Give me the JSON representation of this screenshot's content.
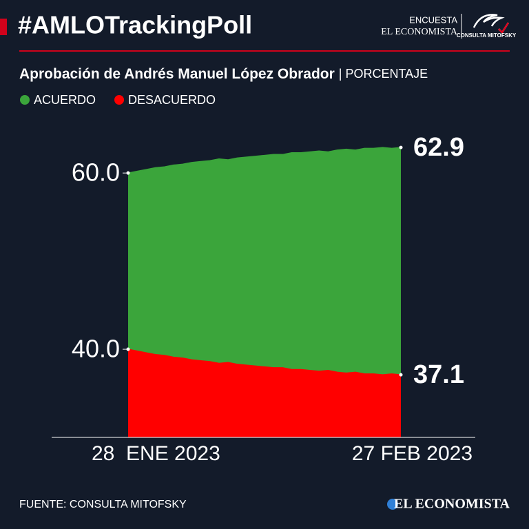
{
  "header": {
    "title": "#AMLOTrackingPoll",
    "logo_top": "ENCUESTA",
    "logo_brand": "EL ECONOMISTA",
    "logo_partner": "CONSULTA MITOFSKY"
  },
  "chart_data": {
    "type": "area",
    "subtitle": "Aprobación de Andrés Manuel López Obrador",
    "unit": "| PORCENTAJE",
    "categories": [
      "28  ENE 2023",
      null,
      null,
      null,
      null,
      null,
      null,
      null,
      null,
      null,
      null,
      null,
      null,
      null,
      null,
      null,
      null,
      null,
      null,
      null,
      null,
      null,
      null,
      null,
      null,
      null,
      null,
      null,
      null,
      null,
      "27 FEB 2023"
    ],
    "series": [
      {
        "name": "ACUERDO",
        "color": "#3ba53b",
        "values": [
          60.0,
          60.2,
          60.4,
          60.6,
          60.7,
          60.9,
          61.0,
          61.2,
          61.3,
          61.4,
          61.6,
          61.5,
          61.7,
          61.8,
          61.9,
          62.0,
          62.1,
          62.1,
          62.3,
          62.3,
          62.4,
          62.5,
          62.4,
          62.6,
          62.7,
          62.6,
          62.8,
          62.8,
          62.9,
          62.8,
          62.9
        ]
      },
      {
        "name": "DESACUERDO",
        "color": "#ff0000",
        "values": [
          40.0,
          39.8,
          39.6,
          39.4,
          39.3,
          39.1,
          39.0,
          38.8,
          38.7,
          38.6,
          38.4,
          38.5,
          38.3,
          38.2,
          38.1,
          38.0,
          37.9,
          37.9,
          37.7,
          37.7,
          37.6,
          37.5,
          37.6,
          37.4,
          37.3,
          37.4,
          37.2,
          37.2,
          37.1,
          37.2,
          37.1
        ]
      }
    ],
    "ylim": [
      30,
      64
    ],
    "yticks": [
      {
        "value": 40,
        "label": "40.0"
      },
      {
        "value": 60,
        "label": "60.0"
      }
    ],
    "grid": false
  },
  "footer": {
    "source": "FUENTE: CONSULTA MITOFSKY",
    "brand": "EL ECONOMISTA"
  }
}
